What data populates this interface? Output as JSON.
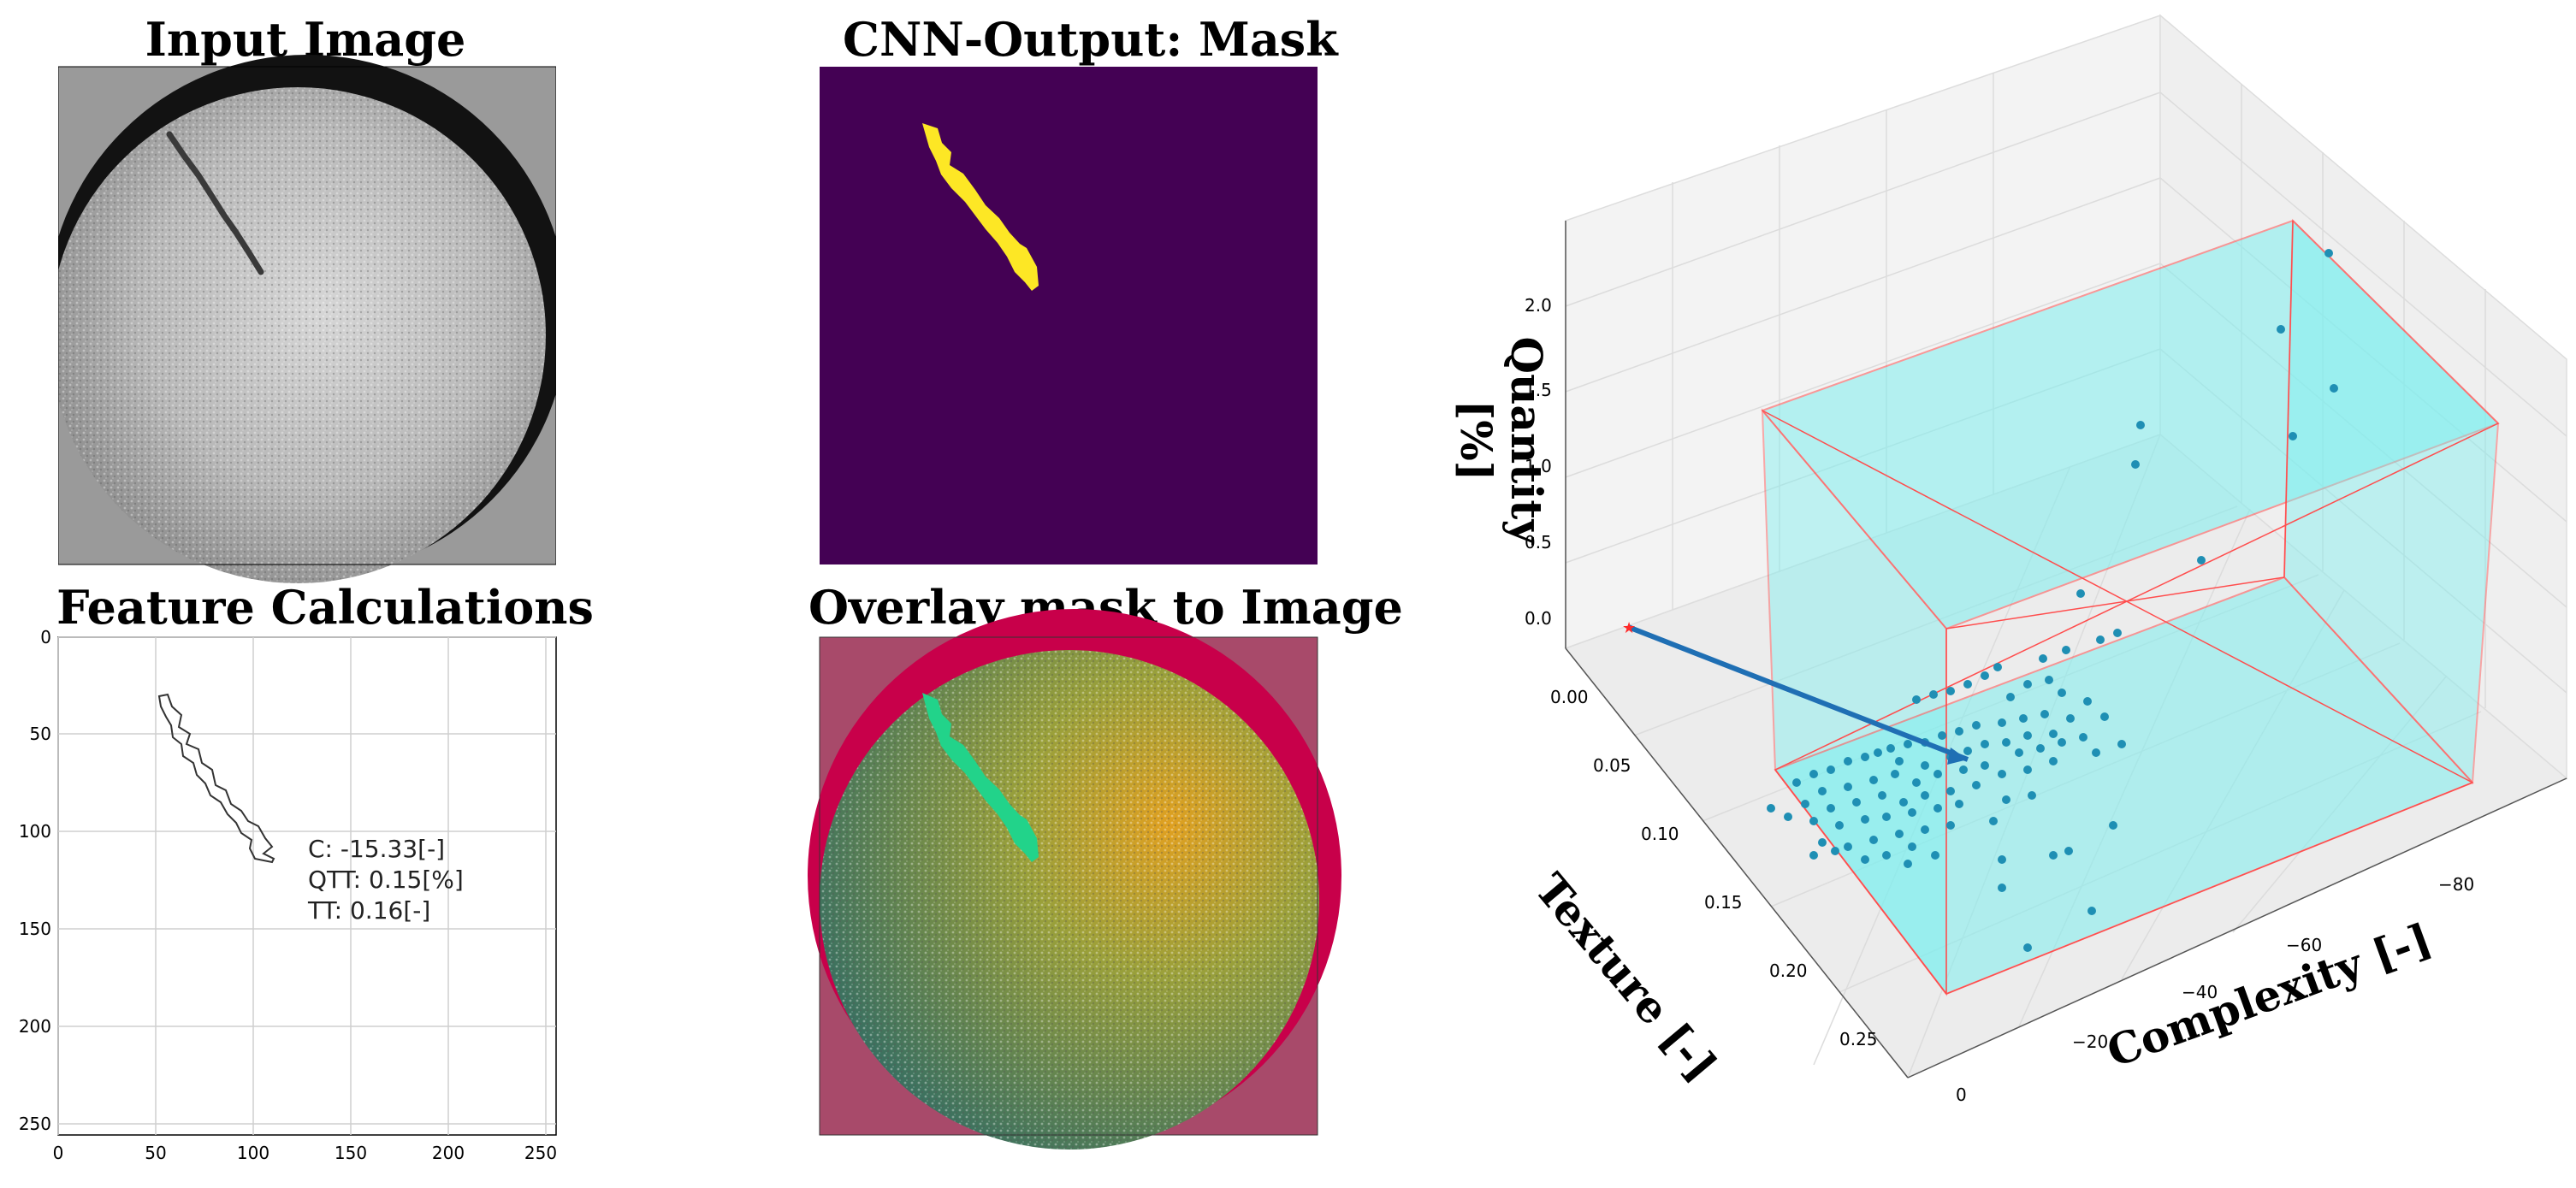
{
  "panels": {
    "input_title": "Input Image",
    "mask_title": "CNN-Output: Mask",
    "features_title": "Feature Calculations",
    "overlay_title": "Overlay mask to Image"
  },
  "features": {
    "c_label": "C: -15.33[-]",
    "qtt_label": "QTT: 0.15[%]",
    "tt_label": "TT: 0.16[-]",
    "x_ticks": [
      "0",
      "50",
      "100",
      "150",
      "200",
      "250"
    ],
    "y_ticks": [
      "0",
      "50",
      "100",
      "150",
      "200",
      "250"
    ]
  },
  "plot3d": {
    "xlabel": "Complexity [-]",
    "ylabel": "Texture [-]",
    "zlabel": "Quantity [%]",
    "x_ticks": [
      "0",
      "−20",
      "−40",
      "−60",
      "−80"
    ],
    "y_ticks": [
      "0.00",
      "0.05",
      "0.10",
      "0.15",
      "0.20",
      "0.25"
    ],
    "z_ticks": [
      "0.0",
      "0.5",
      "1.0",
      "1.5",
      "2.0"
    ],
    "colors": {
      "box_edge": "#ff4d4d",
      "box_fill": "#7fefef",
      "points": "#1f8fb4",
      "arrow": "#1f6fb4",
      "marker": "#ff2a2a"
    }
  }
}
